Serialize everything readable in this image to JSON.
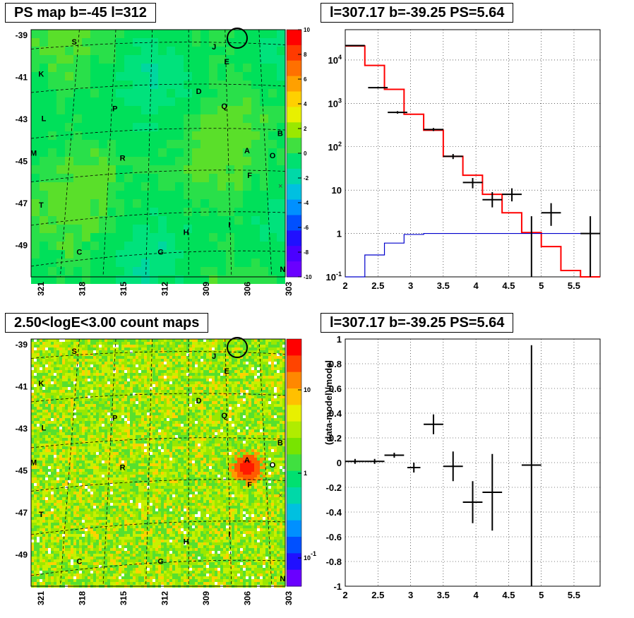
{
  "panels": {
    "tl": {
      "title": "PS map b=-45 l=312"
    },
    "tr": {
      "title": "l=307.17 b=-39.25 PS=5.64"
    },
    "bl": {
      "title": "2.50<logE<3.00 count maps"
    },
    "br": {
      "title": "l=307.17 b=-39.25 PS=5.64"
    }
  },
  "chart_data": [
    {
      "type": "heatmap",
      "title": "PS map b=-45 l=312",
      "x_ticks": [
        "321",
        "318",
        "315",
        "312",
        "309",
        "306",
        "303"
      ],
      "y_ticks": [
        "-39",
        "-41",
        "-43",
        "-45",
        "-47",
        "-49"
      ],
      "colorbar": {
        "min": -10,
        "max": 10,
        "ticks": [
          "10",
          "8",
          "6",
          "4",
          "2",
          "0",
          "-2",
          "-4",
          "-6",
          "-8",
          "-10"
        ]
      },
      "dominant_value": 0,
      "sources": [
        "S",
        "J",
        "E",
        "K",
        "D",
        "Q",
        "L",
        "P",
        "B",
        "M",
        "R",
        "A",
        "O",
        "F",
        "T",
        "I",
        "H",
        "C",
        "G",
        "N"
      ],
      "marker_circle_label": "",
      "colors": {
        "low": "#6a00ff",
        "high": "#ff0000",
        "mid": "#00e05a"
      }
    },
    {
      "type": "line",
      "title": "l=307.17 b=-39.25 PS=5.64",
      "ylog": true,
      "xlim": [
        2,
        5.9
      ],
      "ylim": [
        0.1,
        50000
      ],
      "x_ticks": [
        "2",
        "2.5",
        "3",
        "3.5",
        "4",
        "4.5",
        "5",
        "5.5"
      ],
      "y_ticks": [
        "10^4",
        "10^3",
        "10^2",
        "10",
        "1",
        "10^-1"
      ],
      "series": [
        {
          "color": "#ff0000",
          "edges": [
            2,
            2.3,
            2.6,
            2.9,
            3.2,
            3.5,
            3.8,
            4.1,
            4.4,
            4.7,
            5.0,
            5.3,
            5.6,
            5.9
          ],
          "values": [
            21000,
            7500,
            2100,
            560,
            240,
            60,
            22,
            8,
            3,
            1.05,
            0.5,
            0.14,
            0.1
          ]
        },
        {
          "color": "#0000cc",
          "edges": [
            2,
            2.3,
            2.6,
            2.9,
            3.2,
            3.5,
            3.8,
            4.1,
            4.4,
            4.7,
            5.0,
            5.3,
            5.6,
            5.9
          ],
          "values": [
            0.05,
            0.32,
            0.6,
            0.95,
            1,
            1,
            1,
            1,
            1,
            1,
            1,
            1,
            1
          ]
        },
        {
          "color": "#000000",
          "points": [
            {
              "x": 2.15,
              "y": 21500,
              "xerr": 0.15,
              "ylo": 21000,
              "yhi": 22000
            },
            {
              "x": 2.5,
              "y": 2300,
              "xerr": 0.15,
              "ylo": 2200,
              "yhi": 2400
            },
            {
              "x": 2.8,
              "y": 620,
              "xerr": 0.15,
              "ylo": 580,
              "yhi": 660
            },
            {
              "x": 3.35,
              "y": 250,
              "xerr": 0.15,
              "ylo": 230,
              "yhi": 270
            },
            {
              "x": 3.65,
              "y": 60,
              "xerr": 0.15,
              "ylo": 52,
              "yhi": 68
            },
            {
              "x": 3.95,
              "y": 15,
              "xerr": 0.15,
              "ylo": 11,
              "yhi": 19
            },
            {
              "x": 4.25,
              "y": 6,
              "xerr": 0.15,
              "ylo": 4,
              "yhi": 9
            },
            {
              "x": 4.55,
              "y": 8,
              "xerr": 0.15,
              "ylo": 5.5,
              "yhi": 11
            },
            {
              "x": 4.85,
              "y": 1,
              "xerr": 0,
              "ylo": 0.1,
              "yhi": 2.5
            },
            {
              "x": 5.15,
              "y": 3,
              "xerr": 0.15,
              "ylo": 1.5,
              "yhi": 5
            },
            {
              "x": 5.75,
              "y": 1,
              "xerr": 0.15,
              "ylo": 0.1,
              "yhi": 2.5
            }
          ]
        }
      ]
    },
    {
      "type": "heatmap",
      "title": "2.50<logE<3.00 count maps",
      "x_ticks": [
        "321",
        "318",
        "315",
        "312",
        "309",
        "306",
        "303"
      ],
      "y_ticks": [
        "-39",
        "-41",
        "-43",
        "-45",
        "-47",
        "-49"
      ],
      "colorbar": {
        "log": true,
        "ticks": [
          "10",
          "1",
          "10^-1"
        ]
      },
      "hotspot_source": "A",
      "sources": [
        "S",
        "J",
        "E",
        "K",
        "D",
        "Q",
        "L",
        "P",
        "B",
        "M",
        "R",
        "A",
        "O",
        "F",
        "T",
        "I",
        "H",
        "C",
        "G",
        "N"
      ]
    },
    {
      "type": "scatter",
      "title": "l=307.17 b=-39.25 PS=5.64",
      "ylabel": "(data-model)/model",
      "xlim": [
        2,
        5.9
      ],
      "ylim": [
        -1,
        1
      ],
      "x_ticks": [
        "2",
        "2.5",
        "3",
        "3.5",
        "4",
        "4.5",
        "5",
        "5.5"
      ],
      "y_ticks": [
        "1",
        "0.8",
        "0.6",
        "0.4",
        "0.2",
        "0",
        "-0.2",
        "-0.4",
        "-0.6",
        "-0.8",
        "-1"
      ],
      "points": [
        {
          "x": 2.15,
          "y": 0.01,
          "xerr": 0.15,
          "yerr": 0.02
        },
        {
          "x": 2.45,
          "y": 0.01,
          "xerr": 0.15,
          "yerr": 0.02
        },
        {
          "x": 2.75,
          "y": 0.06,
          "xerr": 0.15,
          "yerr": 0.02
        },
        {
          "x": 3.05,
          "y": -0.04,
          "xerr": 0.1,
          "yerr": 0.04
        },
        {
          "x": 3.35,
          "y": 0.31,
          "xerr": 0.15,
          "yerr": 0.08
        },
        {
          "x": 3.65,
          "y": -0.03,
          "xerr": 0.15,
          "yerr": 0.12
        },
        {
          "x": 3.95,
          "y": -0.32,
          "xerr": 0.15,
          "yerr": 0.17
        },
        {
          "x": 4.25,
          "y": -0.24,
          "xerr": 0.15,
          "yerr": 0.31
        },
        {
          "x": 4.85,
          "y": -0.02,
          "xerr": 0.15,
          "ylo": -1,
          "yhi": 0.95
        }
      ]
    }
  ]
}
